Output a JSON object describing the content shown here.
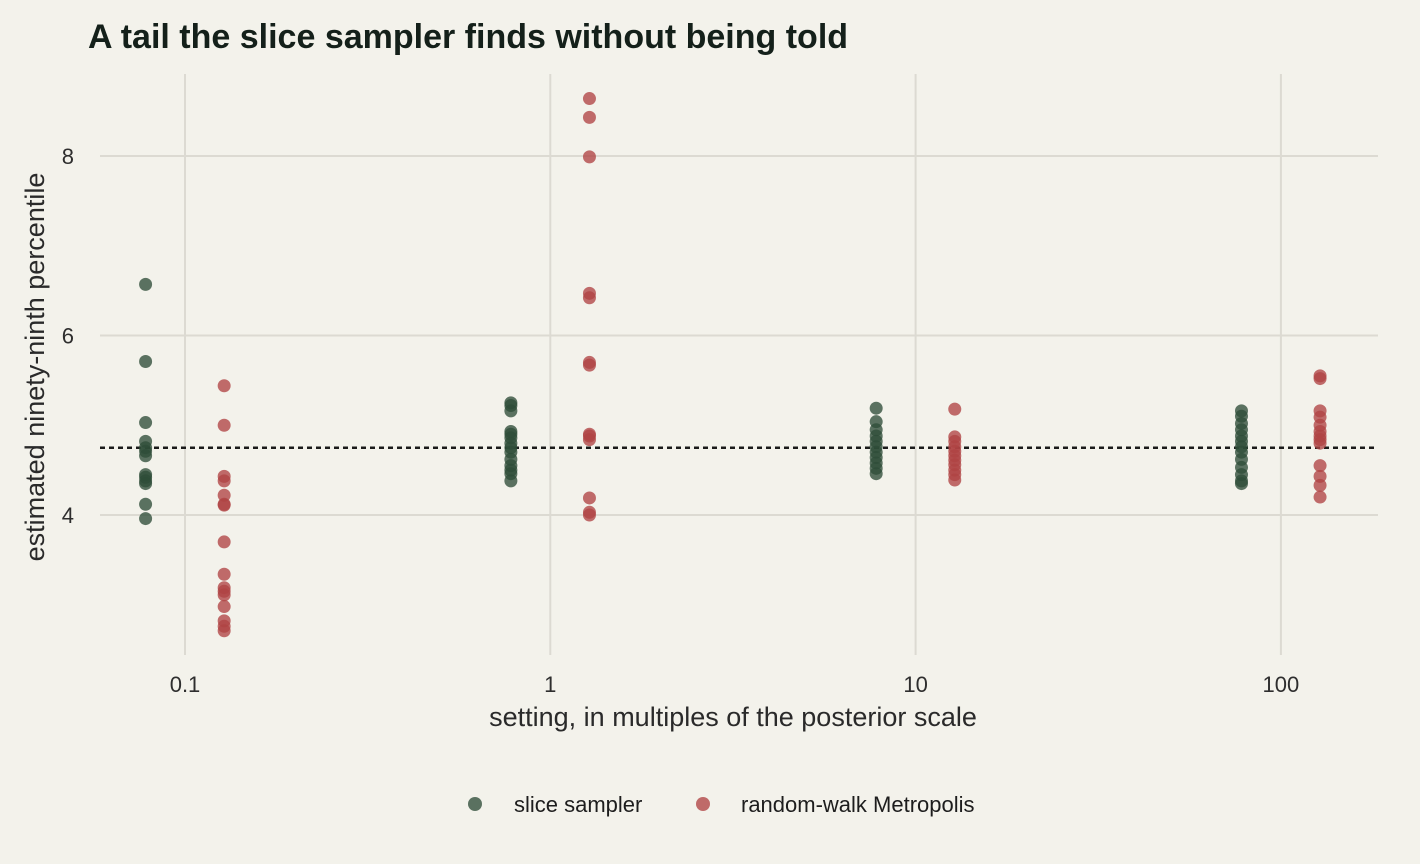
{
  "chart_data": {
    "type": "scatter",
    "title": "A tail the slice sampler finds without being told",
    "xlabel": "setting, in multiples of the posterior scale",
    "ylabel": "estimated ninety-ninth percentile",
    "x_scale": "log",
    "xlim": [
      0.05,
      180
    ],
    "ylim": [
      2.5,
      8.9
    ],
    "x_ticks": [
      0.1,
      1,
      10,
      100
    ],
    "x_tick_labels": [
      "0.1",
      "1",
      "10",
      "100"
    ],
    "y_ticks": [
      4,
      6,
      8
    ],
    "y_tick_labels": [
      "4",
      "6",
      "8"
    ],
    "reference_line": {
      "y": 4.75,
      "style": "dotted"
    },
    "grid": true,
    "legend_position": "bottom",
    "series": [
      {
        "name": "slice sampler",
        "color": "#2e4d38",
        "groups": [
          {
            "x": 0.078,
            "values": [
              6.57,
              5.71,
              5.03,
              4.82,
              4.75,
              4.71,
              4.66,
              4.45,
              4.42,
              4.38,
              4.35,
              4.12,
              3.96
            ]
          },
          {
            "x": 0.78,
            "values": [
              5.25,
              5.22,
              5.16,
              4.93,
              4.9,
              4.86,
              4.8,
              4.75,
              4.7,
              4.62,
              4.55,
              4.5,
              4.46,
              4.38
            ]
          },
          {
            "x": 7.8,
            "values": [
              5.19,
              5.04,
              4.95,
              4.88,
              4.82,
              4.76,
              4.7,
              4.64,
              4.58,
              4.52,
              4.46
            ]
          },
          {
            "x": 78,
            "values": [
              5.16,
              5.1,
              5.02,
              4.95,
              4.88,
              4.82,
              4.76,
              4.7,
              4.62,
              4.53,
              4.45,
              4.38,
              4.35
            ]
          }
        ]
      },
      {
        "name": "random-walk Metropolis",
        "color": "#b04444",
        "groups": [
          {
            "x": 0.128,
            "values": [
              5.44,
              5.0,
              4.43,
              4.38,
              4.22,
              4.12,
              4.11,
              3.7,
              3.34,
              3.19,
              3.15,
              3.11,
              2.98,
              2.82,
              2.76,
              2.71
            ]
          },
          {
            "x": 1.28,
            "values": [
              8.64,
              8.43,
              7.99,
              6.47,
              6.42,
              5.7,
              5.67,
              4.9,
              4.88,
              4.84,
              4.19,
              4.03,
              4.0
            ]
          },
          {
            "x": 12.8,
            "values": [
              5.18,
              4.87,
              4.82,
              4.76,
              4.71,
              4.66,
              4.61,
              4.56,
              4.5,
              4.45,
              4.39
            ]
          },
          {
            "x": 128,
            "values": [
              5.55,
              5.52,
              5.16,
              5.09,
              5.0,
              4.93,
              4.88,
              4.84,
              4.8,
              4.55,
              4.43,
              4.33,
              4.2
            ]
          }
        ]
      }
    ]
  }
}
